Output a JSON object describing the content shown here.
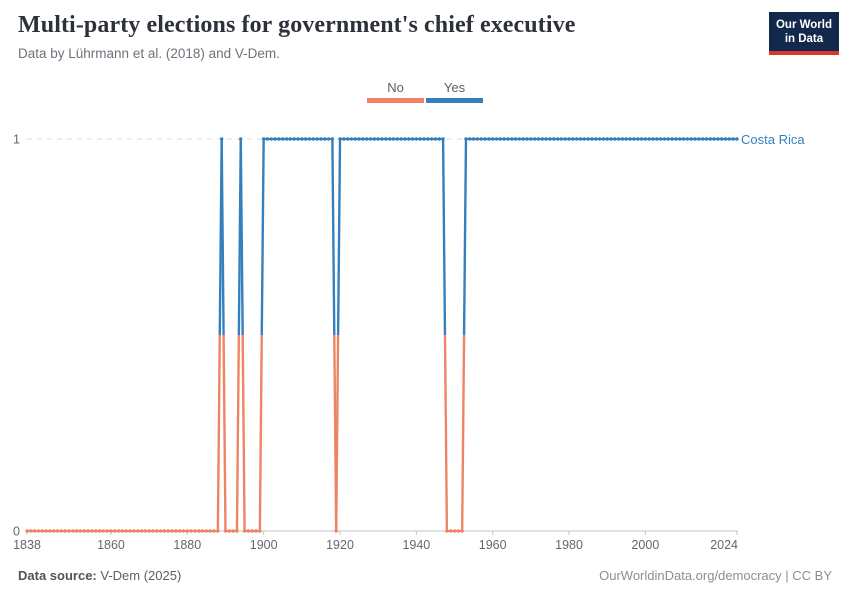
{
  "header": {
    "title": "Multi-party elections for government's chief executive",
    "subtitle": "Data by Lührmann et al. (2018) and V-Dem.",
    "logo": {
      "line1": "Our World",
      "line2": "in Data",
      "bg_color": "#12294B",
      "accent_color": "#D8392C"
    }
  },
  "chart_data": {
    "type": "line",
    "title": "Multi-party elections for government's chief executive",
    "subtitle": "Data by Lührmann et al. (2018) and V-Dem.",
    "entity": "Costa Rica",
    "xlabel": "",
    "ylabel": "",
    "x_range": [
      1838,
      2024
    ],
    "ylim": [
      0,
      1
    ],
    "x_ticks": [
      1838,
      1860,
      1880,
      1900,
      1920,
      1940,
      1960,
      1980,
      2000,
      2024
    ],
    "y_ticks": [
      0,
      1
    ],
    "grid": "dashed-gridline-at-1-solid-axis-at-0",
    "legend_position": "top-center",
    "legend": [
      {
        "label": "No",
        "value": 0,
        "color": "#EE8465"
      },
      {
        "label": "Yes",
        "value": 1,
        "color": "#3580BC"
      }
    ],
    "series": [
      {
        "name": "Costa Rica",
        "segments": [
          {
            "from": 1838,
            "to": 1888,
            "value": 0
          },
          {
            "from": 1889,
            "to": 1889,
            "value": 1
          },
          {
            "from": 1890,
            "to": 1893,
            "value": 0
          },
          {
            "from": 1894,
            "to": 1894,
            "value": 1
          },
          {
            "from": 1895,
            "to": 1899,
            "value": 0
          },
          {
            "from": 1900,
            "to": 1918,
            "value": 1
          },
          {
            "from": 1919,
            "to": 1919,
            "value": 0
          },
          {
            "from": 1920,
            "to": 1947,
            "value": 1
          },
          {
            "from": 1948,
            "to": 1952,
            "value": 0
          },
          {
            "from": 1953,
            "to": 2024,
            "value": 1
          }
        ]
      }
    ]
  },
  "footer": {
    "source_label": "Data source:",
    "source_value": " V-Dem (2025)",
    "credit": "OurWorldinData.org/democracy | CC BY"
  }
}
